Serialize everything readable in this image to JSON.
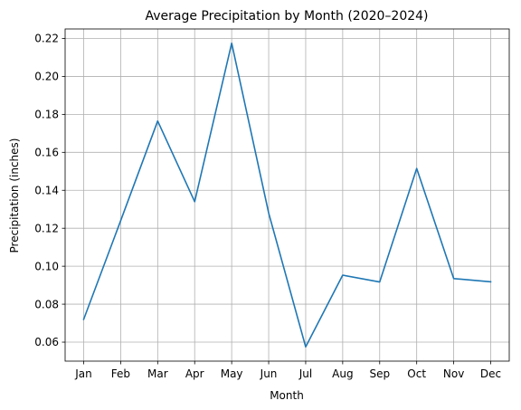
{
  "chart_data": {
    "type": "line",
    "title": "Average Precipitation by Month (2020–2024)",
    "xlabel": "Month",
    "ylabel": "Precipitation (inches)",
    "categories": [
      "Jan",
      "Feb",
      "Mar",
      "Apr",
      "May",
      "Jun",
      "Jul",
      "Aug",
      "Sep",
      "Oct",
      "Nov",
      "Dec"
    ],
    "series": [
      {
        "color": "#1f77b4",
        "values": [
          0.072,
          0.124,
          0.1765,
          0.134,
          0.2175,
          0.128,
          0.0575,
          0.0953,
          0.0917,
          0.1515,
          0.0935,
          0.0918
        ]
      }
    ],
    "ylim": [
      0.05,
      0.225
    ],
    "yticks": [
      "0.06",
      "0.08",
      "0.10",
      "0.12",
      "0.14",
      "0.16",
      "0.18",
      "0.20",
      "0.22"
    ],
    "grid": true
  }
}
